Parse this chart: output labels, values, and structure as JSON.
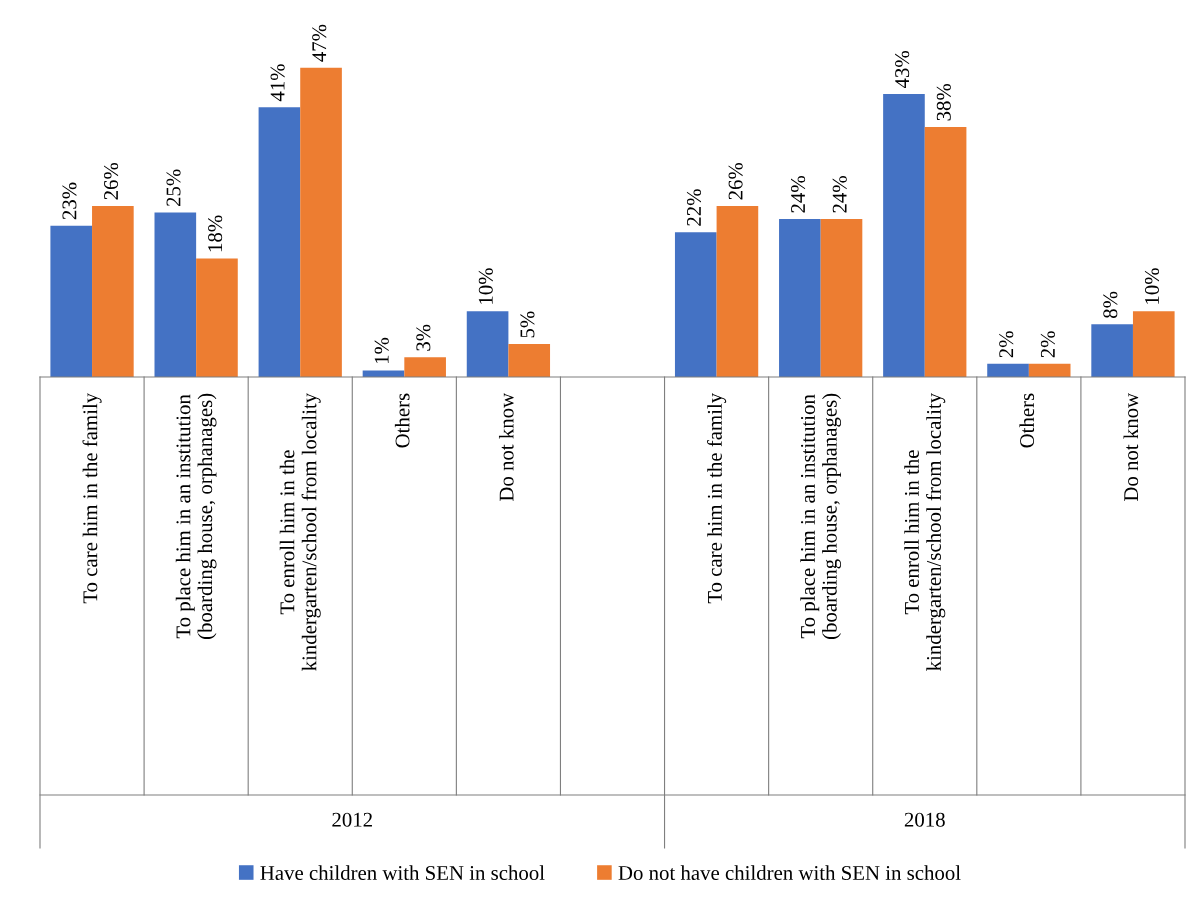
{
  "chart_data": {
    "type": "bar",
    "categories": [
      "To care him in the family",
      "To place him in an institution\n(boarding house, orphanages)",
      "To enroll him in the\nkindergarten/school from locality",
      "Others",
      "Do not know",
      null,
      "To care him in the family",
      "To place him in an institution\n(boarding house, orphanages)",
      "To enroll him in the\nkindergarten/school from locality",
      "Others",
      "Do not know"
    ],
    "series": [
      {
        "name": "Have children with SEN in school",
        "color": "#4472c4",
        "values": [
          23,
          25,
          41,
          1,
          10,
          null,
          22,
          24,
          43,
          2,
          8
        ],
        "value_labels": [
          "23%",
          "25%",
          "41%",
          "1%",
          "10%",
          null,
          "22%",
          "24%",
          "43%",
          "2%",
          "8%"
        ]
      },
      {
        "name": "Do not have children with SEN in school",
        "color": "#ed7d31",
        "values": [
          26,
          18,
          47,
          3,
          5,
          null,
          26,
          24,
          38,
          2,
          10
        ],
        "value_labels": [
          "26%",
          "18%",
          "47%",
          "3%",
          "5%",
          null,
          "26%",
          "24%",
          "38%",
          "2%",
          "10%"
        ]
      }
    ],
    "annotations": [
      "2012",
      "2018"
    ],
    "legend": "bottom"
  }
}
